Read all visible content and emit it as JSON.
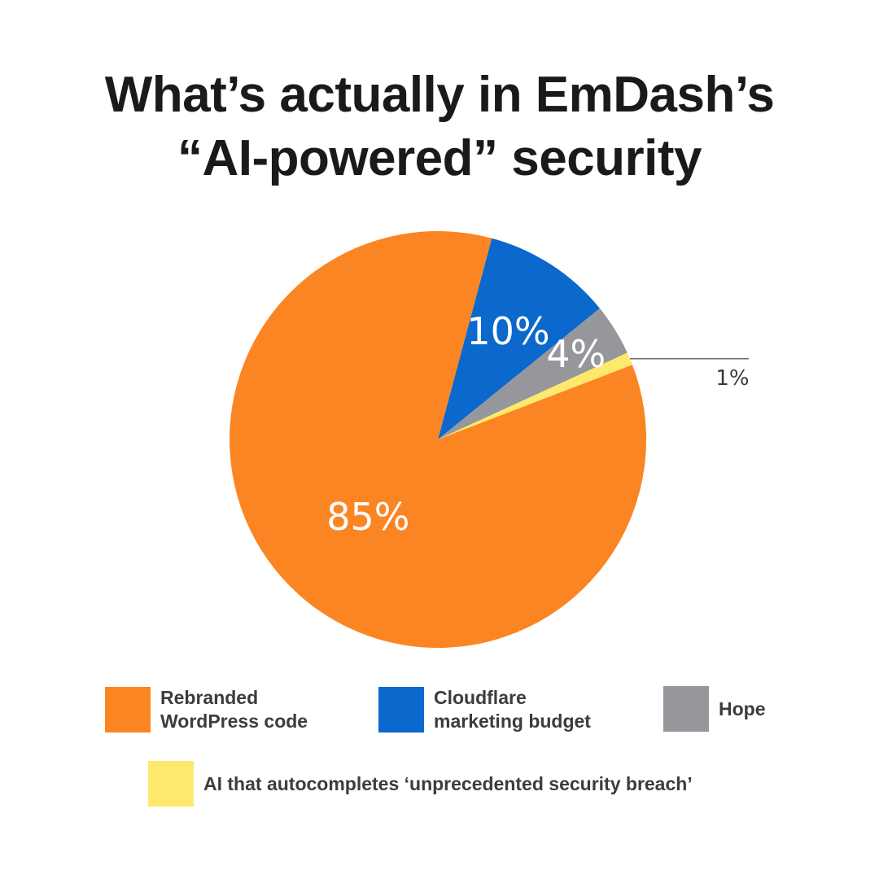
{
  "title": {
    "line1": "What’s actually in EmDash’s",
    "line2": "“AI-powered” security"
  },
  "chart_data": {
    "type": "pie",
    "start_angle_deg": 15,
    "direction": "clockwise",
    "slices": [
      {
        "name": "Cloudflare\nmarketing budget",
        "value": 10,
        "label": "10%",
        "color": "#0b68cd"
      },
      {
        "name": "Hope",
        "value": 4,
        "label": "4%",
        "color": "#96979b"
      },
      {
        "name": "AI that autocompletes ‘unprecedented security breach’",
        "value": 1,
        "label": "1%",
        "color": "#fde96b"
      },
      {
        "name": "Rebranded\nWordPress code",
        "value": 85,
        "label": "85%",
        "color": "#fb8522"
      }
    ],
    "legend_position": "bottom"
  },
  "legend": {
    "items": [
      {
        "label": "Rebranded\nWordPress code",
        "color": "#fb8522"
      },
      {
        "label": "Cloudflare\nmarketing budget",
        "color": "#0b68cd"
      },
      {
        "label": "Hope",
        "color": "#96979b"
      },
      {
        "label": "AI that autocompletes ‘unprecedented security breach’",
        "color": "#fde96b"
      }
    ]
  }
}
